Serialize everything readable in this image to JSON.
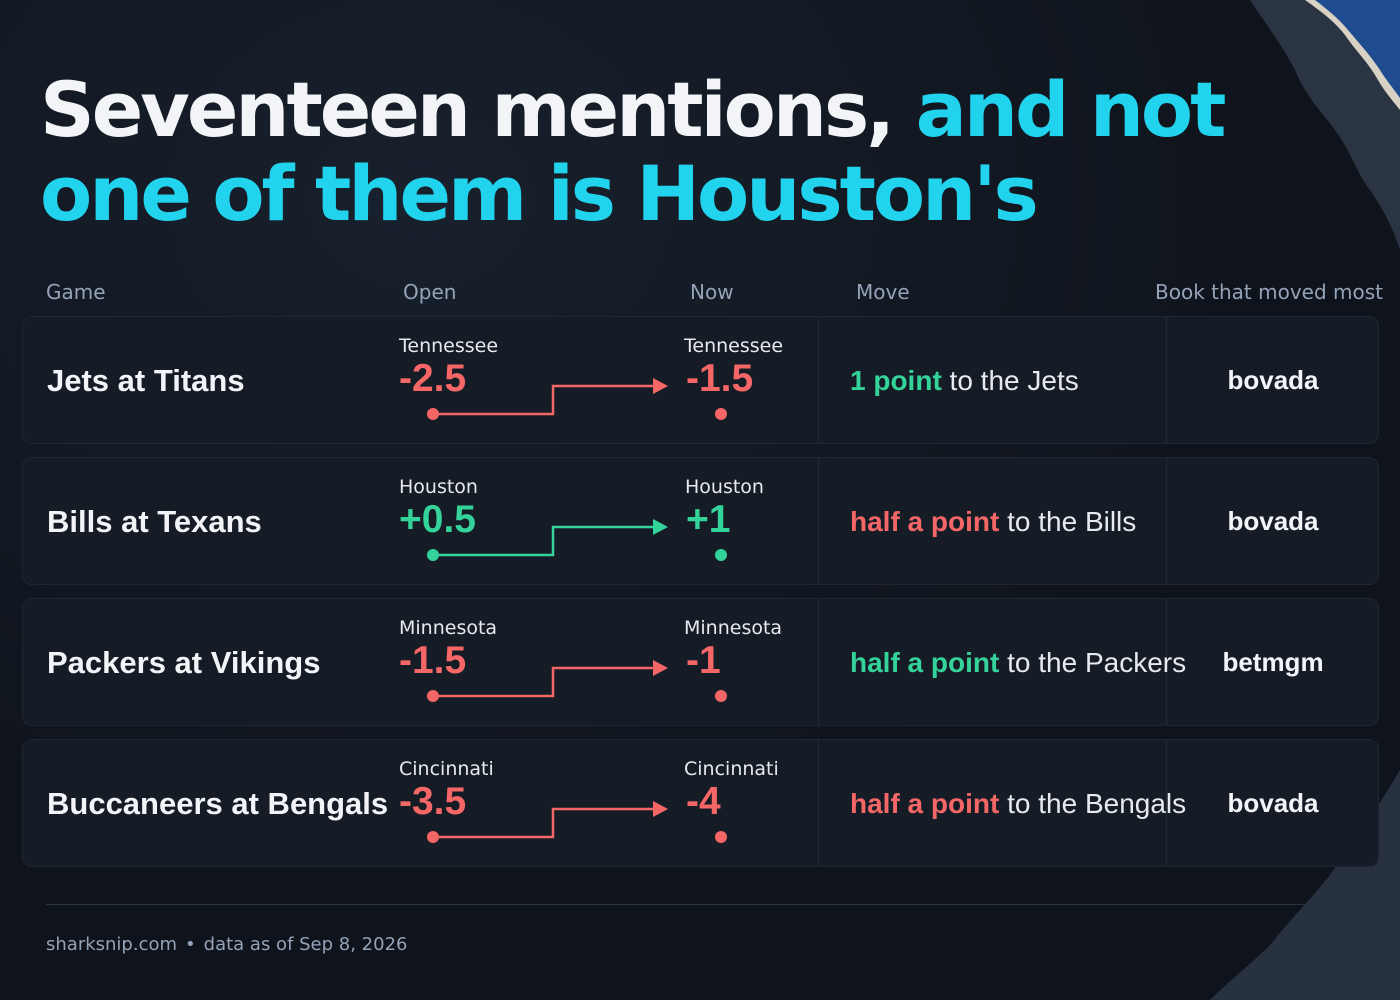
{
  "headline": {
    "line1_white": "Seventeen mentions, ",
    "line1_accent": "and not",
    "line2_accent": "one of them is Houston's"
  },
  "columns": {
    "game": "Game",
    "open": "Open",
    "now": "Now",
    "move": "Move",
    "book": "Book that moved most"
  },
  "rows": [
    {
      "game": "Jets at Titans",
      "open_team": "Tennessee",
      "open_line": "-2.5",
      "now_team": "Tennessee",
      "now_line": "-1.5",
      "move_amount": "1 point",
      "move_rest": " to the Jets",
      "book": "bovada",
      "line_color": "#f56767",
      "move_color": "#34d399"
    },
    {
      "game": "Bills at Texans",
      "open_team": "Houston",
      "open_line": "+0.5",
      "now_team": "Houston",
      "now_line": "+1",
      "move_amount": "half a point",
      "move_rest": " to the Bills",
      "book": "bovada",
      "line_color": "#34d399",
      "move_color": "#f56767"
    },
    {
      "game": "Packers at Vikings",
      "open_team": "Minnesota",
      "open_line": "-1.5",
      "now_team": "Minnesota",
      "now_line": "-1",
      "move_amount": "half a point",
      "move_rest": " to the Packers",
      "book": "betmgm",
      "line_color": "#f56767",
      "move_color": "#34d399"
    },
    {
      "game": "Buccaneers at Bengals",
      "open_team": "Cincinnati",
      "open_line": "-3.5",
      "now_team": "Cincinnati",
      "now_line": "-4",
      "move_amount": "half a point",
      "move_rest": " to the Bengals",
      "book": "bovada",
      "line_color": "#f56767",
      "move_color": "#f56767"
    }
  ],
  "footer": {
    "site": "sharksnip.com",
    "separator": "•",
    "asof": "data as of Sep 8, 2026"
  },
  "colors": {
    "background": "#0f141c",
    "accent": "#22d3ee",
    "negative": "#f56767",
    "positive": "#34d399"
  }
}
